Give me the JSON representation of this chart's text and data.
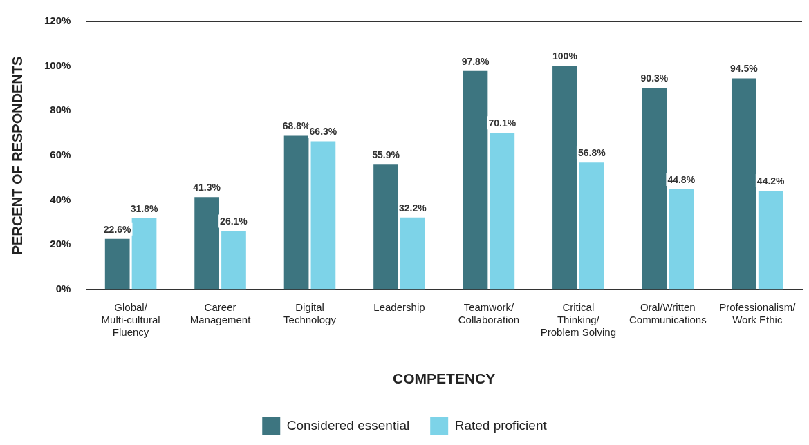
{
  "chart_data": {
    "type": "bar",
    "xlabel": "COMPETENCY",
    "ylabel": "PERCENT OF RESPONDENTS",
    "categories": [
      "Global/\nMulti-cultural\nFluency",
      "Career\nManagement",
      "Digital\nTechnology",
      "Leadership",
      "Teamwork/\nCollaboration",
      "Critical\nThinking/\nProblem Solving",
      "Oral/Written\nCommunications",
      "Professionalism/\nWork Ethic"
    ],
    "series": [
      {
        "name": "Considered essential",
        "color": "#3d7580",
        "values": [
          22.6,
          41.3,
          68.8,
          55.9,
          97.8,
          100,
          90.3,
          94.5
        ],
        "value_labels": [
          "22.6%",
          "41.3%",
          "68.8%",
          "55.9%",
          "97.8%",
          "100%",
          "90.3%",
          "94.5%"
        ]
      },
      {
        "name": "Rated proficient",
        "color": "#7dd3e8",
        "values": [
          31.8,
          26.1,
          66.3,
          32.2,
          70.1,
          56.8,
          44.8,
          44.2
        ],
        "value_labels": [
          "31.8%",
          "26.1%",
          "66.3%",
          "32.2%",
          "70.1%",
          "56.8%",
          "44.8%",
          "44.2%"
        ]
      }
    ],
    "ylim": [
      0,
      120
    ],
    "yticks": [
      {
        "value": 0,
        "label": "0%"
      },
      {
        "value": 20,
        "label": "20%"
      },
      {
        "value": 40,
        "label": "40%"
      },
      {
        "value": 60,
        "label": "60%"
      },
      {
        "value": 80,
        "label": "80%"
      },
      {
        "value": 100,
        "label": "100%"
      },
      {
        "value": 120,
        "label": "120%"
      }
    ],
    "grid": "y",
    "legend": "bottom"
  }
}
